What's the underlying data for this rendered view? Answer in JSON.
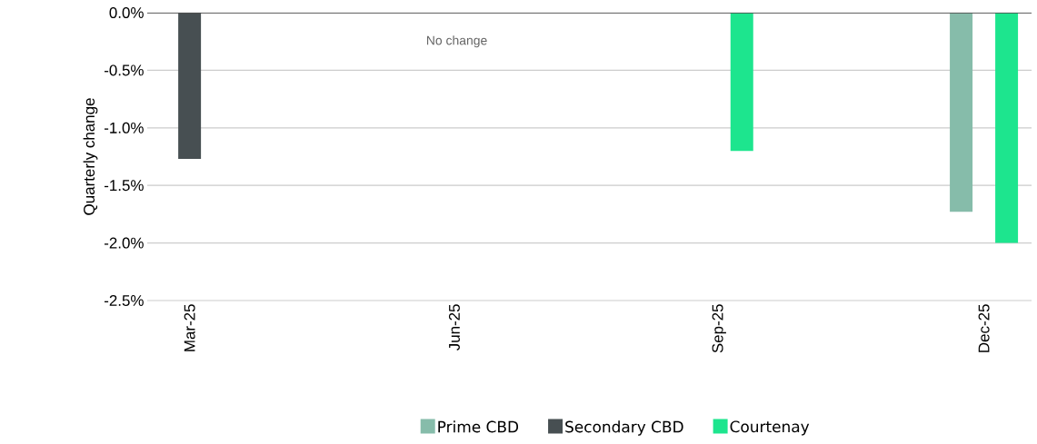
{
  "chart_data": {
    "type": "bar",
    "ylabel": "Quarterly change",
    "categories": [
      "Mar-25",
      "Jun-25",
      "Sep-25",
      "Dec-25"
    ],
    "series": [
      {
        "name": "Prime CBD",
        "color": "#86bcaa",
        "values": [
          0,
          0,
          0,
          -1.73
        ]
      },
      {
        "name": "Secondary CBD",
        "color": "#474f52",
        "values": [
          -1.27,
          0,
          0,
          0
        ]
      },
      {
        "name": "Courtenay",
        "color": "#1de58e",
        "values": [
          0,
          0,
          -1.2,
          -2.0
        ]
      }
    ],
    "ylim": [
      -2.5,
      0
    ],
    "yticks": [
      {
        "value": -2.5,
        "label": "-2.5%"
      },
      {
        "value": -2.0,
        "label": "-2.0%"
      },
      {
        "value": -1.5,
        "label": "-1.5%"
      },
      {
        "value": -1.0,
        "label": "-1.0%"
      },
      {
        "value": -0.5,
        "label": "-0.5%"
      },
      {
        "value": 0,
        "label": "0.0%"
      }
    ],
    "annotations": [
      "No change"
    ],
    "grid": "y",
    "legend": "bottom"
  }
}
